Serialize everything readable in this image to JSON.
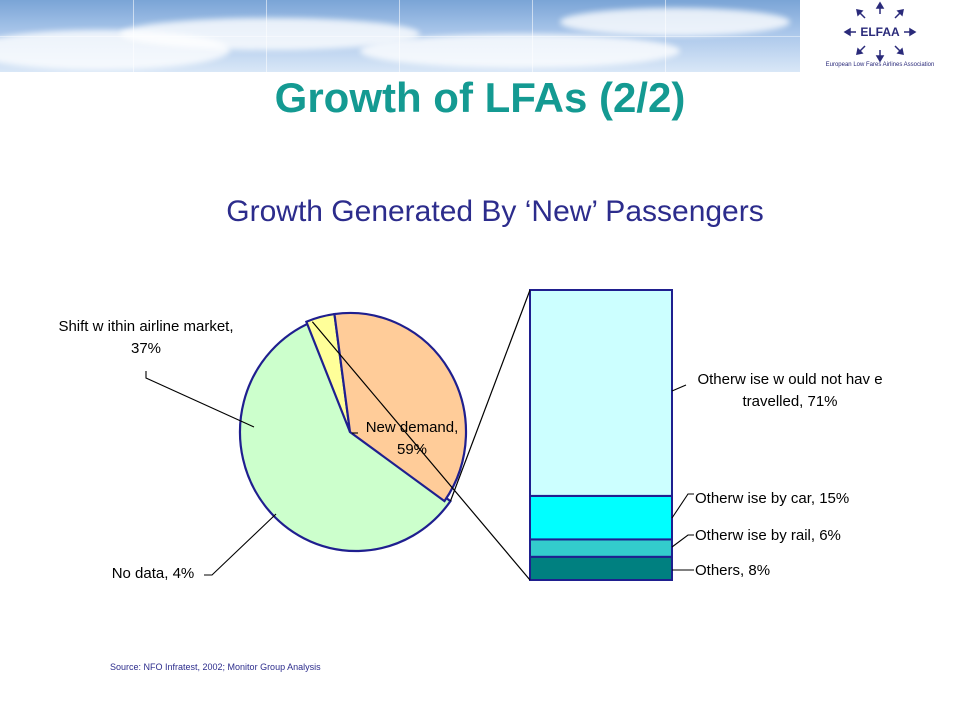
{
  "slide": {
    "title": "Growth of LFAs (2/2)",
    "source": "Source: NFO Infratest, 2002; Monitor Group Analysis"
  },
  "logo": {
    "text": "ELFAA",
    "caption": "European  Low  Fares  Airlines Association"
  },
  "chart_data": {
    "type": "pie",
    "title": "Growth Generated By ‘New’ Passengers",
    "pie": {
      "slices": [
        {
          "key": "new_demand",
          "label_lines": [
            "New  demand,",
            "59%"
          ],
          "value": 59,
          "color": "#ccffcc"
        },
        {
          "key": "no_data",
          "label_lines": [
            "No data, 4%"
          ],
          "value": 4,
          "color": "#ffff99"
        },
        {
          "key": "shift",
          "label_lines": [
            "Shift w ithin airline market,",
            "37%"
          ],
          "value": 37,
          "color": "#ffcc99"
        }
      ]
    },
    "breakdown": {
      "of": "New demand",
      "segments": [
        {
          "key": "others",
          "label_lines": [
            "Others, 8%"
          ],
          "value": 8,
          "color": "#008080"
        },
        {
          "key": "rail",
          "label_lines": [
            "Otherw ise by rail, 6%"
          ],
          "value": 6,
          "color": "#33cccc"
        },
        {
          "key": "car",
          "label_lines": [
            "Otherw ise by car, 15%"
          ],
          "value": 15,
          "color": "#00ffff"
        },
        {
          "key": "not_travelled",
          "label_lines": [
            "Otherw ise w ould not hav e",
            "travelled, 71%"
          ],
          "value": 71,
          "color": "#ccffff"
        }
      ]
    }
  }
}
